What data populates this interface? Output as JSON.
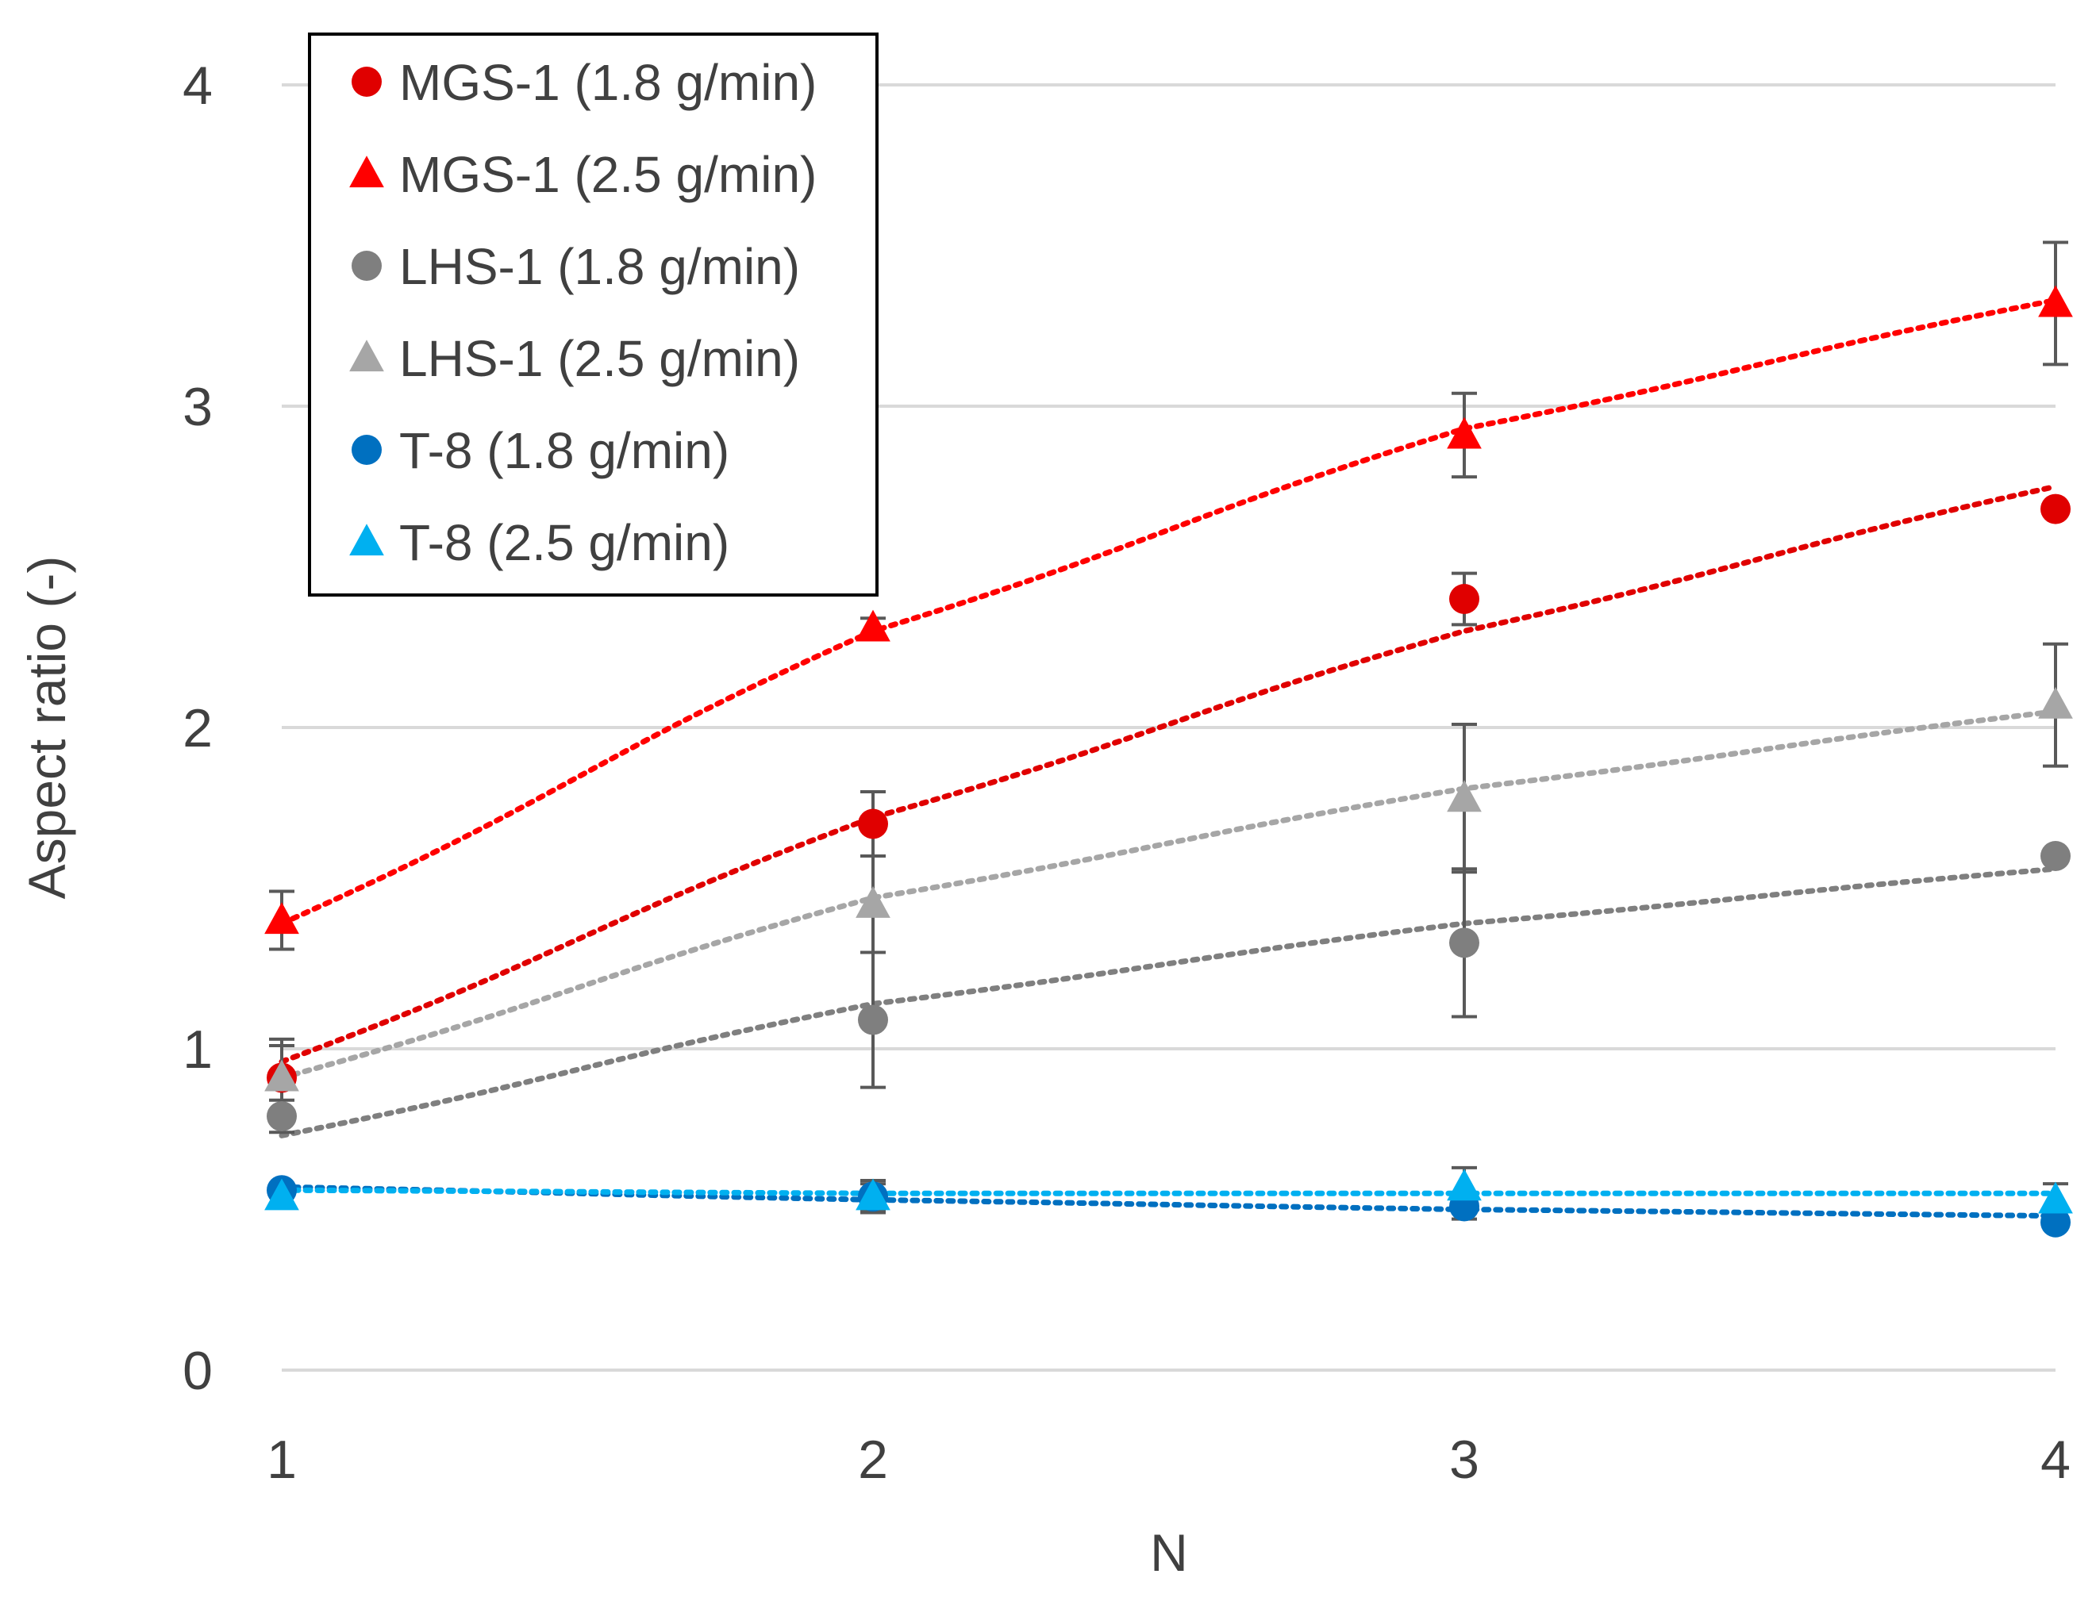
{
  "chart_data": {
    "type": "scatter",
    "title": "",
    "xlabel": "N",
    "ylabel": "Aspect ratio (-)",
    "xlim": [
      1,
      4
    ],
    "ylim": [
      0,
      4
    ],
    "x_ticks": [
      "1",
      "2",
      "3",
      "4"
    ],
    "y_ticks": [
      "0",
      "1",
      "2",
      "3",
      "4"
    ],
    "grid": "horizontal",
    "legend_position": "top-left",
    "trendline": "dotted power fit",
    "series": [
      {
        "name": "MGS-1 (1.8 g/min)",
        "marker": "circle",
        "color": "#e00000",
        "x": [
          1,
          2,
          3,
          4
        ],
        "values": [
          0.91,
          1.7,
          2.4,
          2.68
        ],
        "errors": [
          0.1,
          0.1,
          0.08,
          0.0
        ],
        "trend": [
          0.96,
          1.72,
          2.3,
          2.75
        ]
      },
      {
        "name": "MGS-1 (2.5 g/min)",
        "marker": "triangle",
        "color": "#ff0000",
        "x": [
          1,
          2,
          3,
          4
        ],
        "values": [
          1.4,
          2.31,
          2.91,
          3.32
        ],
        "errors": [
          0.09,
          0.03,
          0.13,
          0.19
        ],
        "trend": [
          1.39,
          2.3,
          2.93,
          3.33
        ]
      },
      {
        "name": "LHS-1 (1.8 g/min)",
        "marker": "circle",
        "color": "#7f7f7f",
        "x": [
          1,
          2,
          3,
          4
        ],
        "values": [
          0.79,
          1.09,
          1.33,
          1.6
        ],
        "errors": [
          0.05,
          0.21,
          0.23,
          0.0
        ],
        "trend": [
          0.73,
          1.14,
          1.39,
          1.56
        ]
      },
      {
        "name": "LHS-1 (2.5 g/min)",
        "marker": "triangle",
        "color": "#a6a6a6",
        "x": [
          1,
          2,
          3,
          4
        ],
        "values": [
          0.91,
          1.45,
          1.78,
          2.07
        ],
        "errors": [
          0.12,
          0.15,
          0.23,
          0.19
        ],
        "trend": [
          0.91,
          1.47,
          1.81,
          2.05
        ]
      },
      {
        "name": "T-8 (1.8 g/min)",
        "marker": "circle",
        "color": "#0070c0",
        "x": [
          1,
          2,
          3,
          4
        ],
        "values": [
          0.56,
          0.54,
          0.51,
          0.46
        ],
        "errors": [
          0.0,
          0.05,
          0.04,
          0.0
        ],
        "trend": [
          0.57,
          0.53,
          0.5,
          0.48
        ]
      },
      {
        "name": "T-8 (2.5 g/min)",
        "marker": "triangle",
        "color": "#00b0f0",
        "x": [
          1,
          2,
          3,
          4
        ],
        "values": [
          0.54,
          0.54,
          0.57,
          0.53
        ],
        "errors": [
          0.0,
          0.04,
          0.06,
          0.05
        ],
        "trend": [
          0.56,
          0.55,
          0.55,
          0.55
        ]
      }
    ]
  }
}
